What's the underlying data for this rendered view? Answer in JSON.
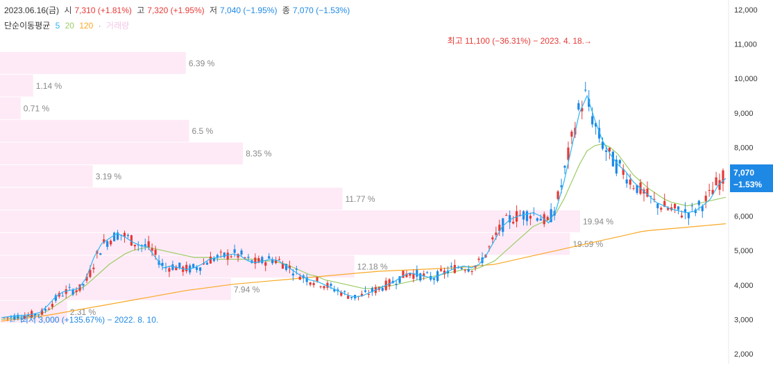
{
  "header": {
    "date": "2023.06.16(금)",
    "open_label": "시",
    "open": "7,310 (+1.81%)",
    "high_label": "고",
    "high": "7,320 (+1.95%)",
    "low_label": "저",
    "low": "7,040 (−1.95%)",
    "close_label": "종",
    "close": "7,070 (−1.53%)",
    "ma_label": "단순이동평균",
    "ma5": "5",
    "ma20": "20",
    "ma120": "120",
    "ma_dot": "·",
    "ma_extra": "거래량"
  },
  "colors": {
    "up": "#e53935",
    "down": "#1e88e5",
    "ma5": "#29b6f6",
    "ma20": "#9ccc65",
    "ma120": "#f9a825",
    "volume_profile": "#fdeaf6",
    "price_badge": "#1e88e5"
  },
  "chart_data": {
    "type": "candlestick",
    "y_axis": {
      "range": [
        2000,
        12000
      ],
      "ticks": [
        "12,000",
        "11,000",
        "10,000",
        "9,000",
        "8,000",
        "7,000",
        "6,000",
        "5,000",
        "4,000",
        "3,000",
        "2,000"
      ]
    },
    "annotations": {
      "high": "최고 11,100 (−36.31%) − 2023. 4. 18.",
      "low": "최저 3,000 (+135.67%) − 2022. 8. 10."
    },
    "current_price": {
      "price": "7,070",
      "change": "−1.53%"
    },
    "volume_profile": [
      {
        "label": "6.39 %",
        "value": 6.39
      },
      {
        "label": "1.14 %",
        "value": 1.14
      },
      {
        "label": "0.71 %",
        "value": 0.71
      },
      {
        "label": "6.5 %",
        "value": 6.5
      },
      {
        "label": "8.35 %",
        "value": 8.35
      },
      {
        "label": "3.19 %",
        "value": 3.19
      },
      {
        "label": "11.77 %",
        "value": 11.77
      },
      {
        "label": "19.94 %",
        "value": 19.94
      },
      {
        "label": "19.59 %",
        "value": 19.59
      },
      {
        "label": "12.18 %",
        "value": 12.18
      },
      {
        "label": "7.94 %",
        "value": 7.94
      },
      {
        "label": "2.31 %",
        "value": 2.31
      }
    ],
    "ma5": [
      3050,
      3080,
      3100,
      3120,
      3150,
      3200,
      3400,
      3650,
      3800,
      3850,
      3900,
      4200,
      4800,
      5200,
      5350,
      5500,
      5400,
      5250,
      5150,
      5100,
      4800,
      4500,
      4550,
      4500,
      4450,
      4500,
      4600,
      4750,
      4800,
      4850,
      4900,
      4850,
      4700,
      4650,
      4700,
      4750,
      4700,
      4550,
      4400,
      4250,
      4150,
      4100,
      4000,
      3900,
      3800,
      3700,
      3650,
      3700,
      3800,
      3900,
      4000,
      4100,
      4250,
      4350,
      4300,
      4250,
      4200,
      4300,
      4400,
      4500,
      4550,
      4500,
      4600,
      4900,
      5300,
      5700,
      5900,
      6000,
      6050,
      6100,
      6000,
      5800,
      6200,
      7000,
      8000,
      9000,
      9500,
      8800,
      8200,
      7800,
      7500,
      7300,
      7000,
      6800,
      6600,
      6400,
      6300,
      6200,
      6150,
      6100,
      6150,
      6300,
      6500,
      6900,
      7100
    ],
    "ma20": [
      3000,
      3020,
      3050,
      3080,
      3100,
      3150,
      3250,
      3400,
      3550,
      3700,
      3850,
      4000,
      4200,
      4400,
      4600,
      4750,
      4900,
      5000,
      5050,
      5100,
      5050,
      5000,
      4950,
      4900,
      4850,
      4800,
      4800,
      4800,
      4750,
      4750,
      4750,
      4750,
      4750,
      4750,
      4700,
      4700,
      4650,
      4600,
      4500,
      4400,
      4300,
      4250,
      4150,
      4100,
      4050,
      4000,
      3950,
      3900,
      3900,
      3950,
      3950,
      4000,
      4050,
      4100,
      4150,
      4200,
      4250,
      4300,
      4350,
      4400,
      4450,
      4450,
      4500,
      4600,
      4700,
      4900,
      5100,
      5300,
      5500,
      5700,
      5800,
      5900,
      6100,
      6500,
      7000,
      7500,
      7900,
      8050,
      8100,
      8000,
      7800,
      7500,
      7200,
      7000,
      6800,
      6650,
      6500,
      6400,
      6350,
      6300,
      6350,
      6400,
      6450,
      6500,
      6550
    ],
    "ma120": [
      2950,
      2980,
      3000,
      3030,
      3060,
      3090,
      3120,
      3160,
      3200,
      3240,
      3280,
      3320,
      3360,
      3400,
      3440,
      3480,
      3520,
      3560,
      3600,
      3640,
      3680,
      3720,
      3760,
      3800,
      3840,
      3870,
      3900,
      3930,
      3960,
      3990,
      4020,
      4040,
      4060,
      4080,
      4100,
      4120,
      4140,
      4160,
      4180,
      4200,
      4220,
      4240,
      4260,
      4280,
      4300,
      4320,
      4340,
      4360,
      4380,
      4400,
      4410,
      4420,
      4430,
      4440,
      4450,
      4460,
      4470,
      4480,
      4490,
      4500,
      4520,
      4540,
      4560,
      4580,
      4600,
      4650,
      4700,
      4750,
      4800,
      4850,
      4900,
      4950,
      5000,
      5050,
      5100,
      5150,
      5200,
      5250,
      5300,
      5350,
      5400,
      5450,
      5500,
      5550,
      5580,
      5600,
      5620,
      5640,
      5660,
      5680,
      5700,
      5720,
      5740,
      5760,
      5780
    ]
  }
}
